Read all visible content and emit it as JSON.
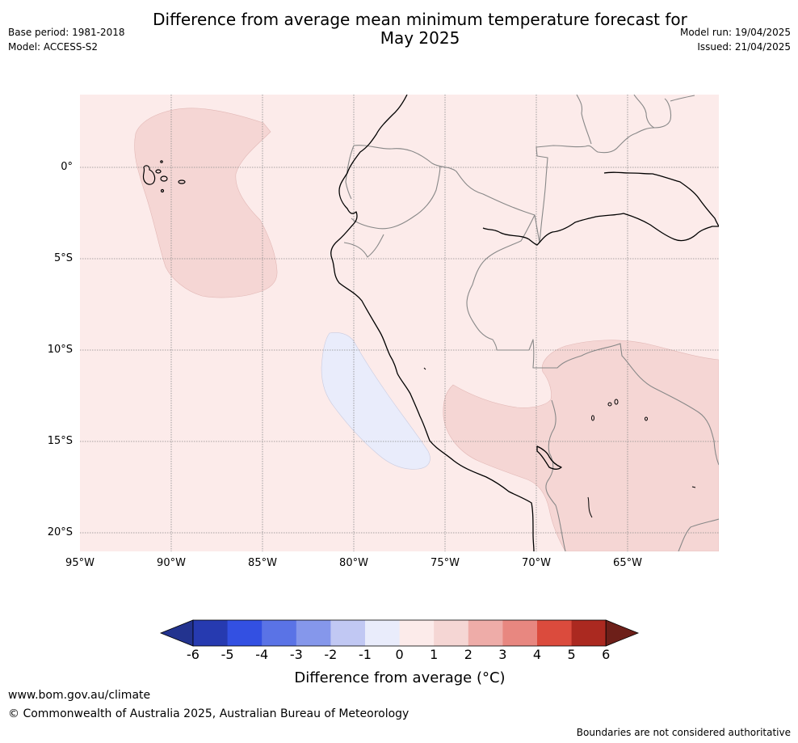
{
  "header": {
    "title_line1": "Difference from average mean minimum temperature forecast for",
    "title_line2": "May 2025",
    "base_period": "Base period: 1981-2018",
    "model": "Model: ACCESS-S2",
    "model_run": "Model run: 19/04/2025",
    "issued": "Issued: 21/04/2025"
  },
  "map": {
    "lat_labels": [
      "0°",
      "5°S",
      "10°S",
      "15°S",
      "20°S"
    ],
    "lon_labels": [
      "95°W",
      "90°W",
      "85°W",
      "80°W",
      "75°W",
      "70°W",
      "65°W"
    ],
    "colors": {
      "background_0_to_1": "#fcebea",
      "anomaly_1_to_2": "#f5d6d4",
      "anomaly_minus1_to_0": "#e9ecfb",
      "coastline": "#000000",
      "borders": "#888888",
      "gridlines": "#8a8a8a"
    }
  },
  "colorbar": {
    "ticks": [
      "-6",
      "-5",
      "-4",
      "-3",
      "-2",
      "-1",
      "0",
      "1",
      "2",
      "3",
      "4",
      "5",
      "6"
    ],
    "colors": [
      "#23338f",
      "#263ab0",
      "#3350e2",
      "#5a73e6",
      "#8597eb",
      "#c1c8f3",
      "#e9ecfb",
      "#fcebea",
      "#f5d6d4",
      "#eeaca8",
      "#e88780",
      "#db4b3d",
      "#ab2920",
      "#6d1f19"
    ],
    "label": "Difference from average (°C)"
  },
  "footer": {
    "website": "www.bom.gov.au/climate",
    "copyright": "© Commonwealth of Australia 2025, Australian Bureau of Meteorology",
    "disclaimer": "Boundaries are not considered authoritative"
  }
}
